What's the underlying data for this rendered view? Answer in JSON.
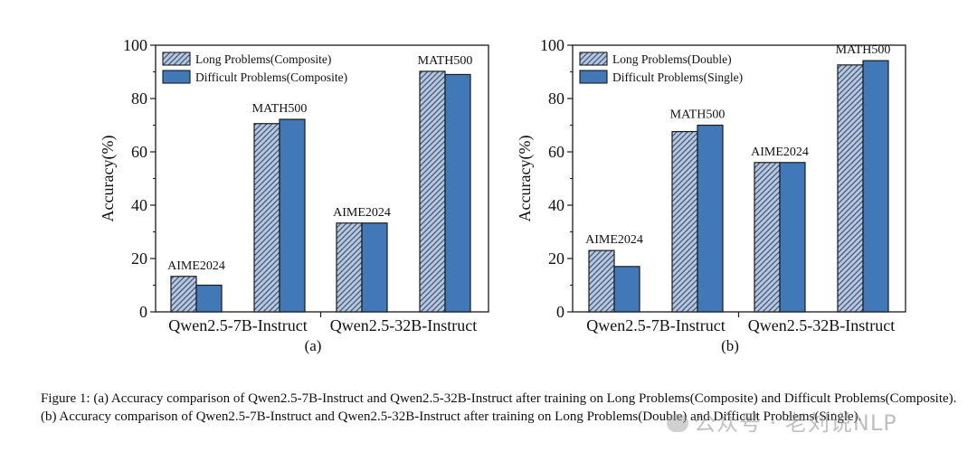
{
  "colors": {
    "hatch_fill": "#b8c7dc",
    "hatch_line": "#3f5a80",
    "solid_fill": "#4179b8",
    "outline": "#1a1a1a"
  },
  "chart_data": [
    {
      "type": "bar",
      "panel_label": "(a)",
      "ylabel": "Accuracy(%)",
      "ylim": [
        0,
        100
      ],
      "yticks": [
        0,
        20,
        40,
        60,
        80,
        100
      ],
      "legend_position": "top-left",
      "group_labels": [
        "Qwen2.5-7B-Instruct",
        "Qwen2.5-32B-Instruct"
      ],
      "categories": [
        "AIME2024",
        "MATH500",
        "AIME2024",
        "MATH500"
      ],
      "series": [
        {
          "name": "Long Problems(Composite)",
          "style": "hatched",
          "values": [
            13.3,
            70.6,
            33.3,
            90.2
          ]
        },
        {
          "name": "Difficult Problems(Composite)",
          "style": "solid",
          "values": [
            10.0,
            72.2,
            33.3,
            89.0
          ]
        }
      ]
    },
    {
      "type": "bar",
      "panel_label": "(b)",
      "ylabel": "Accuracy(%)",
      "ylim": [
        0,
        100
      ],
      "yticks": [
        0,
        20,
        40,
        60,
        80,
        100
      ],
      "legend_position": "top-left",
      "group_labels": [
        "Qwen2.5-7B-Instruct",
        "Qwen2.5-32B-Instruct"
      ],
      "categories": [
        "AIME2024",
        "MATH500",
        "AIME2024",
        "MATH500"
      ],
      "series": [
        {
          "name": "Long Problems(Double)",
          "style": "hatched",
          "values": [
            23.0,
            67.6,
            56.0,
            92.6
          ]
        },
        {
          "name": "Difficult Problems(Single)",
          "style": "solid",
          "values": [
            17.0,
            70.0,
            56.0,
            94.2
          ]
        }
      ]
    }
  ],
  "caption": "Figure 1: (a) Accuracy comparison of Qwen2.5-7B-Instruct and Qwen2.5-32B-Instruct after training on Long Problems(Composite) and Difficult Problems(Composite). (b) Accuracy comparison of Qwen2.5-7B-Instruct and Qwen2.5-32B-Instruct after training on Long Problems(Double) and Difficult Problems(Single).",
  "watermark": "公众号 · 老刘说NLP"
}
